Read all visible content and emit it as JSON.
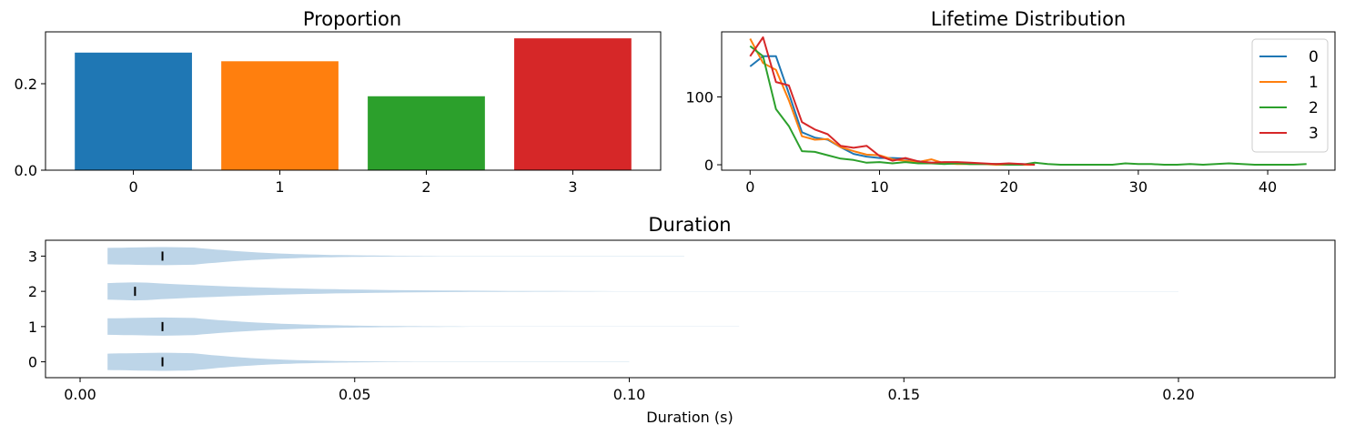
{
  "chart_data": [
    {
      "type": "bar",
      "title": "Proportion",
      "xlabel": "",
      "ylabel": "",
      "categories": [
        "0",
        "1",
        "2",
        "3"
      ],
      "values": [
        0.272,
        0.252,
        0.171,
        0.305
      ],
      "colors": [
        "#1f77b4",
        "#ff7f0e",
        "#2ca02c",
        "#d62728"
      ],
      "xlim": [
        -0.6,
        3.6
      ],
      "ylim": [
        0,
        0.32
      ],
      "yticks": [
        0.0,
        0.2
      ],
      "ytick_labels": [
        "0.0",
        "0.2"
      ],
      "grid": false
    },
    {
      "type": "line",
      "title": "Lifetime Distribution",
      "xlabel": "",
      "ylabel": "",
      "xlim": [
        -2.2,
        45.2
      ],
      "ylim": [
        -8,
        196
      ],
      "xticks": [
        0,
        10,
        20,
        30,
        40
      ],
      "xtick_labels": [
        "0",
        "10",
        "20",
        "30",
        "40"
      ],
      "yticks": [
        0,
        100
      ],
      "ytick_labels": [
        "0",
        "100"
      ],
      "legend": "top-right",
      "grid": false,
      "series": [
        {
          "name": "0",
          "color": "#1f77b4",
          "x": [
            0,
            1,
            2,
            3,
            4,
            5,
            6,
            7,
            8,
            9,
            10,
            11,
            12,
            13,
            14,
            15,
            16,
            17,
            18,
            19,
            20,
            21,
            22
          ],
          "y": [
            145,
            160,
            160,
            105,
            48,
            40,
            37,
            26,
            16,
            12,
            10,
            10,
            9,
            5,
            3,
            2,
            2,
            1,
            1,
            1,
            1,
            1,
            0
          ]
        },
        {
          "name": "1",
          "color": "#ff7f0e",
          "x": [
            0,
            1,
            2,
            3,
            4,
            5,
            6,
            7,
            8,
            9,
            10,
            11,
            12,
            13,
            14,
            15,
            16,
            17,
            18,
            19,
            20,
            21,
            22
          ],
          "y": [
            186,
            150,
            140,
            95,
            42,
            37,
            38,
            26,
            20,
            15,
            14,
            8,
            6,
            4,
            8,
            2,
            1,
            1,
            1,
            0,
            0,
            0,
            0
          ]
        },
        {
          "name": "2",
          "color": "#2ca02c",
          "x": [
            0,
            1,
            2,
            3,
            4,
            5,
            6,
            7,
            8,
            9,
            10,
            11,
            12,
            13,
            14,
            15,
            16,
            17,
            18,
            19,
            20,
            21,
            22,
            23,
            24,
            25,
            26,
            27,
            28,
            29,
            30,
            31,
            32,
            33,
            34,
            35,
            36,
            37,
            38,
            39,
            40,
            41,
            42,
            43
          ],
          "y": [
            175,
            160,
            82,
            57,
            20,
            19,
            14,
            9,
            7,
            3,
            4,
            2,
            4,
            2,
            2,
            1,
            2,
            1,
            1,
            1,
            0,
            0,
            3,
            1,
            0,
            0,
            0,
            0,
            0,
            2,
            1,
            1,
            0,
            0,
            1,
            0,
            1,
            2,
            1,
            0,
            0,
            0,
            0,
            1
          ]
        },
        {
          "name": "3",
          "color": "#d62728",
          "x": [
            0,
            1,
            2,
            3,
            4,
            5,
            6,
            7,
            8,
            9,
            10,
            11,
            12,
            13,
            14,
            15,
            16,
            17,
            18,
            19,
            20,
            21,
            22
          ],
          "y": [
            160,
            188,
            122,
            117,
            63,
            52,
            45,
            28,
            25,
            28,
            13,
            6,
            10,
            5,
            3,
            4,
            4,
            3,
            2,
            1,
            2,
            1,
            0
          ]
        }
      ]
    },
    {
      "type": "violin",
      "title": "Duration",
      "xlabel": "Duration (s)",
      "ylabel": "",
      "orientation": "horizontal",
      "xlim": [
        -0.0063,
        0.2285
      ],
      "ylim": [
        -0.45,
        3.45
      ],
      "xticks": [
        0.0,
        0.05,
        0.1,
        0.15,
        0.2
      ],
      "xtick_labels": [
        "0.00",
        "0.05",
        "0.10",
        "0.15",
        "0.20"
      ],
      "yticks": [
        0,
        1,
        2,
        3
      ],
      "ytick_labels": [
        "0",
        "1",
        "2",
        "3"
      ],
      "color": "#bdd5e8",
      "median_marker": "vertical black tick",
      "violins": [
        {
          "position": 0,
          "min": 0.005,
          "max": 0.1,
          "median": 0.015
        },
        {
          "position": 1,
          "min": 0.005,
          "max": 0.12,
          "median": 0.015
        },
        {
          "position": 2,
          "min": 0.005,
          "max": 0.2,
          "median": 0.01
        },
        {
          "position": 3,
          "min": 0.005,
          "max": 0.11,
          "median": 0.015
        }
      ]
    }
  ]
}
